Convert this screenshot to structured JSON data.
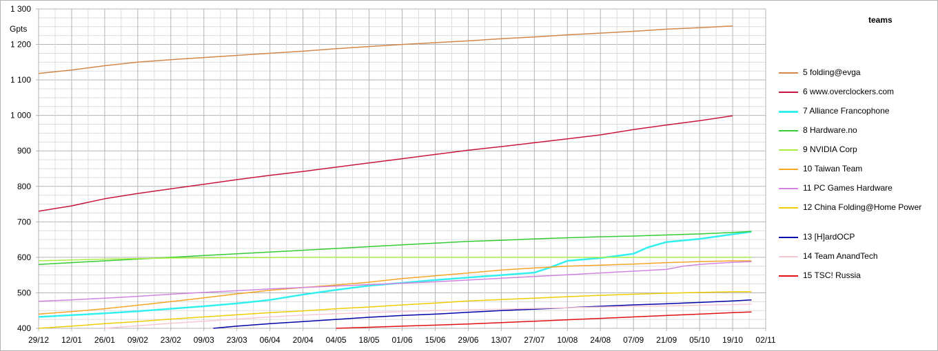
{
  "chart_data": {
    "type": "line",
    "title": "",
    "ylabel": "Gpts",
    "legend_title": "teams",
    "legend_placement": "right",
    "grid": true,
    "x_tick_labels": [
      "29/12",
      "12/01",
      "26/01",
      "09/02",
      "23/02",
      "09/03",
      "23/03",
      "06/04",
      "20/04",
      "04/05",
      "18/05",
      "01/06",
      "15/06",
      "29/06",
      "13/07",
      "27/07",
      "10/08",
      "24/08",
      "07/09",
      "21/09",
      "05/10",
      "19/10",
      "02/11"
    ],
    "y_tick_labels": [
      "400",
      "500",
      "600",
      "700",
      "800",
      "900",
      "1 000",
      "1 100",
      "1 200",
      "1 300"
    ],
    "ylim": [
      400,
      1300
    ],
    "xlim": [
      0,
      308
    ],
    "series": [
      {
        "name": "5 folding@evga",
        "color": "#d2874a",
        "width": 1.5,
        "points": [
          [
            0,
            1118
          ],
          [
            14,
            1128
          ],
          [
            28,
            1140
          ],
          [
            42,
            1150
          ],
          [
            56,
            1157
          ],
          [
            70,
            1163
          ],
          [
            84,
            1169
          ],
          [
            98,
            1175
          ],
          [
            112,
            1181
          ],
          [
            126,
            1188
          ],
          [
            140,
            1194
          ],
          [
            154,
            1200
          ],
          [
            168,
            1205
          ],
          [
            182,
            1210
          ],
          [
            196,
            1216
          ],
          [
            210,
            1221
          ],
          [
            224,
            1227
          ],
          [
            238,
            1232
          ],
          [
            252,
            1237
          ],
          [
            266,
            1243
          ],
          [
            280,
            1247
          ],
          [
            294,
            1252
          ]
        ]
      },
      {
        "name": "6 www.overclockers.com",
        "color": "#c9143c",
        "width": 1.5,
        "points": [
          [
            0,
            730
          ],
          [
            14,
            745
          ],
          [
            28,
            765
          ],
          [
            42,
            780
          ],
          [
            56,
            793
          ],
          [
            70,
            806
          ],
          [
            84,
            819
          ],
          [
            98,
            831
          ],
          [
            112,
            842
          ],
          [
            126,
            854
          ],
          [
            140,
            866
          ],
          [
            154,
            878
          ],
          [
            168,
            890
          ],
          [
            182,
            902
          ],
          [
            196,
            912
          ],
          [
            210,
            923
          ],
          [
            224,
            934
          ],
          [
            238,
            945
          ],
          [
            252,
            960
          ],
          [
            266,
            973
          ],
          [
            280,
            985
          ],
          [
            294,
            999
          ]
        ]
      },
      {
        "name": "7 Alliance Francophone",
        "color": "#33f0f0",
        "width": 2.5,
        "points": [
          [
            0,
            432
          ],
          [
            14,
            437
          ],
          [
            28,
            442
          ],
          [
            42,
            448
          ],
          [
            56,
            455
          ],
          [
            70,
            462
          ],
          [
            84,
            470
          ],
          [
            98,
            480
          ],
          [
            112,
            495
          ],
          [
            126,
            508
          ],
          [
            140,
            520
          ],
          [
            154,
            528
          ],
          [
            168,
            536
          ],
          [
            182,
            543
          ],
          [
            196,
            550
          ],
          [
            210,
            557
          ],
          [
            216,
            570
          ],
          [
            224,
            590
          ],
          [
            238,
            598
          ],
          [
            252,
            610
          ],
          [
            258,
            628
          ],
          [
            266,
            643
          ],
          [
            280,
            652
          ],
          [
            294,
            665
          ],
          [
            302,
            672
          ]
        ]
      },
      {
        "name": "8 Hardware.no",
        "color": "#33cc33",
        "width": 1.5,
        "points": [
          [
            0,
            580
          ],
          [
            14,
            585
          ],
          [
            28,
            590
          ],
          [
            42,
            595
          ],
          [
            56,
            600
          ],
          [
            70,
            605
          ],
          [
            84,
            610
          ],
          [
            98,
            615
          ],
          [
            112,
            620
          ],
          [
            126,
            625
          ],
          [
            140,
            630
          ],
          [
            154,
            635
          ],
          [
            168,
            640
          ],
          [
            182,
            645
          ],
          [
            196,
            648
          ],
          [
            210,
            652
          ],
          [
            224,
            655
          ],
          [
            238,
            658
          ],
          [
            252,
            660
          ],
          [
            266,
            663
          ],
          [
            280,
            666
          ],
          [
            294,
            670
          ],
          [
            302,
            673
          ]
        ]
      },
      {
        "name": "9 NVIDIA Corp",
        "color": "#aaee44",
        "width": 1.5,
        "points": [
          [
            0,
            590
          ],
          [
            28,
            595
          ],
          [
            56,
            598
          ],
          [
            84,
            599
          ],
          [
            112,
            600
          ],
          [
            168,
            600
          ],
          [
            224,
            600
          ],
          [
            280,
            600
          ],
          [
            302,
            600
          ]
        ]
      },
      {
        "name": "10 Taiwan Team",
        "color": "#f5a623",
        "width": 1.5,
        "points": [
          [
            0,
            440
          ],
          [
            14,
            447
          ],
          [
            28,
            455
          ],
          [
            42,
            465
          ],
          [
            56,
            475
          ],
          [
            70,
            486
          ],
          [
            84,
            497
          ],
          [
            98,
            507
          ],
          [
            112,
            515
          ],
          [
            126,
            522
          ],
          [
            140,
            530
          ],
          [
            154,
            540
          ],
          [
            168,
            548
          ],
          [
            182,
            556
          ],
          [
            196,
            564
          ],
          [
            210,
            570
          ],
          [
            224,
            575
          ],
          [
            238,
            578
          ],
          [
            252,
            581
          ],
          [
            266,
            585
          ],
          [
            280,
            588
          ],
          [
            294,
            590
          ],
          [
            302,
            590
          ]
        ]
      },
      {
        "name": "11 PC Games Hardware",
        "color": "#d083e0",
        "width": 1.5,
        "points": [
          [
            0,
            476
          ],
          [
            14,
            480
          ],
          [
            28,
            485
          ],
          [
            42,
            490
          ],
          [
            56,
            496
          ],
          [
            70,
            501
          ],
          [
            84,
            506
          ],
          [
            98,
            511
          ],
          [
            112,
            515
          ],
          [
            126,
            519
          ],
          [
            140,
            523
          ],
          [
            154,
            527
          ],
          [
            168,
            531
          ],
          [
            182,
            536
          ],
          [
            196,
            541
          ],
          [
            210,
            546
          ],
          [
            224,
            551
          ],
          [
            238,
            556
          ],
          [
            252,
            561
          ],
          [
            266,
            566
          ],
          [
            273,
            575
          ],
          [
            280,
            580
          ],
          [
            294,
            586
          ],
          [
            302,
            588
          ]
        ]
      },
      {
        "name": "12 China Folding@Home Power",
        "color": "#f0cc00",
        "width": 1.5,
        "points": [
          [
            0,
            400
          ],
          [
            14,
            406
          ],
          [
            28,
            413
          ],
          [
            42,
            419
          ],
          [
            56,
            426
          ],
          [
            70,
            432
          ],
          [
            84,
            438
          ],
          [
            98,
            444
          ],
          [
            112,
            449
          ],
          [
            126,
            455
          ],
          [
            140,
            460
          ],
          [
            154,
            466
          ],
          [
            168,
            471
          ],
          [
            182,
            477
          ],
          [
            196,
            481
          ],
          [
            210,
            485
          ],
          [
            224,
            489
          ],
          [
            238,
            493
          ],
          [
            252,
            496
          ],
          [
            266,
            499
          ],
          [
            280,
            501
          ],
          [
            294,
            503
          ],
          [
            302,
            503
          ]
        ]
      },
      {
        "name": "13 [H]ardOCP",
        "color": "#0000aa",
        "width": 1.5,
        "points": [
          [
            74,
            400
          ],
          [
            84,
            406
          ],
          [
            98,
            413
          ],
          [
            112,
            419
          ],
          [
            126,
            425
          ],
          [
            140,
            431
          ],
          [
            154,
            436
          ],
          [
            168,
            440
          ],
          [
            182,
            445
          ],
          [
            196,
            450
          ],
          [
            210,
            454
          ],
          [
            224,
            458
          ],
          [
            238,
            462
          ],
          [
            252,
            466
          ],
          [
            266,
            469
          ],
          [
            280,
            473
          ],
          [
            294,
            477
          ],
          [
            302,
            480
          ]
        ]
      },
      {
        "name": "14 Team AnandTech",
        "color": "#f8c8d0",
        "width": 1.5,
        "points": [
          [
            28,
            400
          ],
          [
            42,
            407
          ],
          [
            56,
            414
          ],
          [
            70,
            420
          ],
          [
            84,
            426
          ],
          [
            98,
            432
          ],
          [
            112,
            437
          ],
          [
            126,
            441
          ],
          [
            140,
            444
          ],
          [
            154,
            447
          ],
          [
            168,
            450
          ],
          [
            182,
            452
          ],
          [
            196,
            454
          ],
          [
            210,
            456
          ],
          [
            224,
            458
          ],
          [
            238,
            460
          ],
          [
            252,
            462
          ],
          [
            266,
            463
          ],
          [
            280,
            465
          ],
          [
            294,
            467
          ],
          [
            302,
            468
          ]
        ]
      },
      {
        "name": "15 TSC! Russia",
        "color": "#e01010",
        "width": 1.5,
        "points": [
          [
            126,
            400
          ],
          [
            140,
            403
          ],
          [
            154,
            406
          ],
          [
            168,
            409
          ],
          [
            182,
            412
          ],
          [
            196,
            416
          ],
          [
            210,
            420
          ],
          [
            224,
            424
          ],
          [
            238,
            428
          ],
          [
            252,
            432
          ],
          [
            266,
            436
          ],
          [
            280,
            440
          ],
          [
            294,
            444
          ],
          [
            302,
            446
          ]
        ]
      }
    ]
  }
}
